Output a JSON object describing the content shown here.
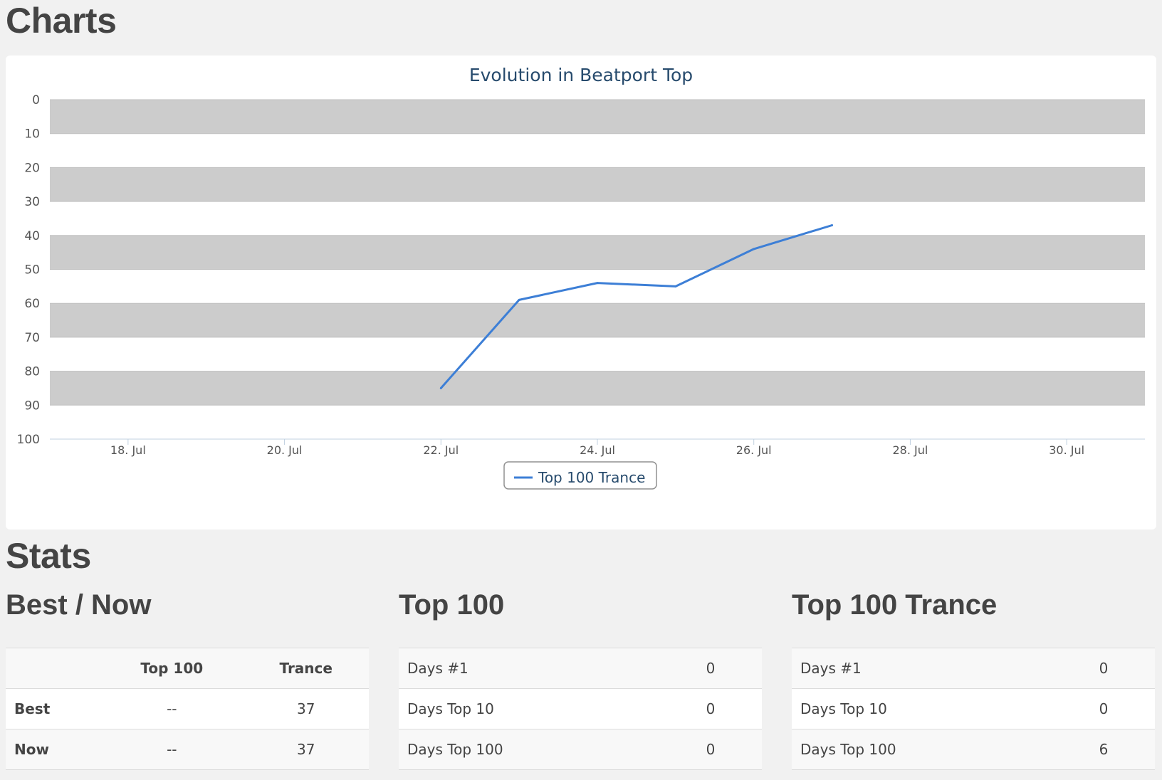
{
  "page": {
    "charts_heading": "Charts",
    "stats_heading": "Stats"
  },
  "chart_data": {
    "type": "line",
    "title": "Evolution in Beatport Top",
    "y_reversed": true,
    "ylim": [
      0,
      100
    ],
    "y_ticks": [
      "0",
      "10",
      "20",
      "30",
      "40",
      "50",
      "60",
      "70",
      "80",
      "90",
      "100"
    ],
    "xlim": [
      "2015-07-17",
      "2015-07-31"
    ],
    "x_ticks": [
      "18. Jul",
      "20. Jul",
      "22. Jul",
      "24. Jul",
      "26. Jul",
      "28. Jul",
      "30. Jul"
    ],
    "x_tick_dates": [
      "2015-07-18",
      "2015-07-20",
      "2015-07-22",
      "2015-07-24",
      "2015-07-26",
      "2015-07-28",
      "2015-07-30"
    ],
    "plot_bands": true,
    "legend": "bottom-center",
    "series": [
      {
        "name": "Top 100 Trance",
        "color": "#3d7fd6",
        "points": [
          {
            "x": "2015-07-22",
            "y": 85
          },
          {
            "x": "2015-07-23",
            "y": 59
          },
          {
            "x": "2015-07-24",
            "y": 54
          },
          {
            "x": "2015-07-25",
            "y": 55
          },
          {
            "x": "2015-07-26",
            "y": 44
          },
          {
            "x": "2015-07-27",
            "y": 37
          }
        ]
      }
    ]
  },
  "stats": {
    "best_now": {
      "title": "Best / Now",
      "headers": [
        "",
        "Top 100",
        "Trance"
      ],
      "rows": [
        {
          "label": "Best",
          "top100": "--",
          "trance": "37"
        },
        {
          "label": "Now",
          "top100": "--",
          "trance": "37"
        }
      ]
    },
    "top100": {
      "title": "Top 100",
      "rows": [
        {
          "label": "Days #1",
          "value": "0"
        },
        {
          "label": "Days Top 10",
          "value": "0"
        },
        {
          "label": "Days Top 100",
          "value": "0"
        }
      ]
    },
    "top100_trance": {
      "title": "Top 100 Trance",
      "rows": [
        {
          "label": "Days #1",
          "value": "0"
        },
        {
          "label": "Days Top 10",
          "value": "0"
        },
        {
          "label": "Days Top 100",
          "value": "6"
        }
      ]
    }
  }
}
